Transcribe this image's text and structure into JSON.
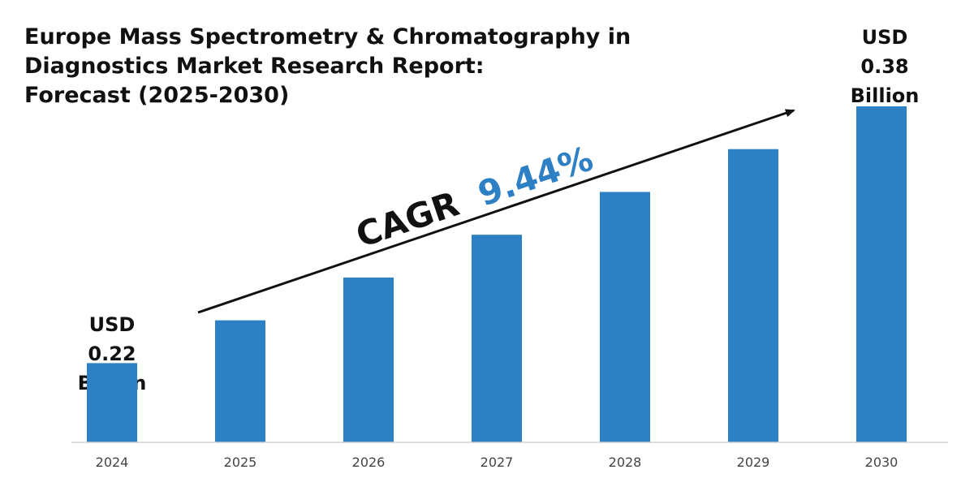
{
  "chart_data": {
    "type": "bar",
    "title_lines": [
      "Europe Mass Spectrometry & Chromatography in",
      "Diagnostics Market Research Report:",
      "Forecast (2025-2030)"
    ],
    "categories": [
      "2024",
      "2025",
      "2026",
      "2027",
      "2028",
      "2029",
      "2030"
    ],
    "values": [
      0.22,
      0.247,
      0.274,
      0.301,
      0.328,
      0.355,
      0.382
    ],
    "ylim": [
      0.17,
      0.4
    ],
    "unit": "USD Billion",
    "annotations": {
      "start_label": [
        "USD",
        "0.22",
        "Billion"
      ],
      "end_label": [
        "USD",
        "0.38",
        "Billion"
      ],
      "cagr_prefix": "CAGR",
      "cagr_value": "9.44%"
    },
    "grid": false,
    "legend": "none"
  },
  "colors": {
    "bar": "#2e80c4",
    "cagr_value": "#2e80c4",
    "text": "#111111",
    "axis": "#d0d0d0"
  }
}
